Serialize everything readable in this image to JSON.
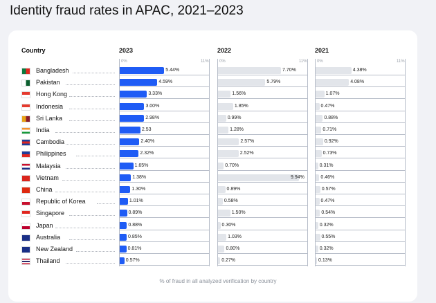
{
  "chart_data": {
    "type": "bar",
    "title": "Identity fraud rates in APAC, 2021–2023",
    "category_header": "Country",
    "xlabel": "% of fraud in all analyzed verification by country",
    "xlim": [
      0,
      11
    ],
    "tick_labels": [
      "0%",
      "11%"
    ],
    "categories": [
      "Bangladesh",
      "Pakistan",
      "Hong Kong",
      "Indonesia",
      "Sri Lanka",
      "India",
      "Cambodia",
      "Philippines",
      "Malaysia",
      "Vietnam",
      "China",
      "Republic of Korea",
      "Singapore",
      "Japan",
      "Australia",
      "New Zealand",
      "Thailand"
    ],
    "series": [
      {
        "name": "2023",
        "color": "#1f5cf5",
        "values": [
          5.44,
          4.59,
          3.33,
          3.0,
          2.98,
          2.53,
          2.4,
          2.32,
          1.65,
          1.38,
          1.3,
          1.01,
          0.89,
          0.88,
          0.85,
          0.81,
          0.57
        ],
        "labels": [
          "5.44%",
          "4.59%",
          "3.33%",
          "3.00%",
          "2.98%",
          "2.53",
          "2.40%",
          "2.32%",
          "1.65%",
          "1.38%",
          "1.30%",
          "1.01%",
          "0.89%",
          "0.88%",
          "0.85%",
          "0.81%",
          "0.57%"
        ]
      },
      {
        "name": "2022",
        "color": "#e2e5ea",
        "values": [
          7.7,
          5.79,
          1.56,
          1.85,
          0.99,
          1.28,
          2.57,
          2.52,
          0.7,
          9.94,
          0.89,
          0.58,
          1.5,
          0.3,
          1.03,
          0.8,
          0.27
        ],
        "labels": [
          "7.70%",
          "5.79%",
          "1.56%",
          "1.85%",
          "0.99%",
          "1.28%",
          "2.57%",
          "2.52%",
          "0.70%",
          "9.94%",
          "0.89%",
          "0.58%",
          "1.50%",
          "0.30%",
          "1.03%",
          "0.80%",
          "0.27%"
        ]
      },
      {
        "name": "2021",
        "color": "#e2e5ea",
        "values": [
          4.38,
          4.08,
          1.07,
          0.47,
          0.88,
          0.71,
          0.92,
          0.73,
          0.31,
          0.46,
          0.57,
          0.47,
          0.54,
          0.32,
          0.55,
          0.32,
          0.13
        ],
        "labels": [
          "4.38%",
          "4.08%",
          "1.07%",
          "0.47%",
          "0.88%",
          "0.71%",
          "0.92%",
          "0.73%",
          "0.31%",
          "0.46%",
          "0.57%",
          "0.47%",
          "0.54%",
          "0.32%",
          "0.55%",
          "0.32%",
          "0.13%"
        ]
      }
    ],
    "flag_colors": [
      [
        "#0a7a3e",
        "#e0261f"
      ],
      [
        "#ffffff",
        "#0b5e2e"
      ],
      [
        "#e53a2e",
        "#ffffff"
      ],
      [
        "#e53a2e",
        "#ffffff"
      ],
      [
        "#e8a317",
        "#8a1c2b"
      ],
      [
        "#f3922f",
        "#ffffff",
        "#179a3c"
      ],
      [
        "#1e3d9a",
        "#e0261f",
        "#1e3d9a"
      ],
      [
        "#1e3d9a",
        "#e0261f"
      ],
      [
        "#c8102e",
        "#ffffff",
        "#1a2f86"
      ],
      [
        "#da251d",
        "#da251d"
      ],
      [
        "#de2910",
        "#de2910"
      ],
      [
        "#ffffff",
        "#c8102e"
      ],
      [
        "#e0261f",
        "#ffffff"
      ],
      [
        "#ffffff",
        "#bc002d"
      ],
      [
        "#1a2f86",
        "#1a2f86"
      ],
      [
        "#1a2f86",
        "#1a2f86"
      ],
      [
        "#c8102e",
        "#ffffff",
        "#2d2a6a",
        "#ffffff",
        "#c8102e"
      ]
    ]
  }
}
